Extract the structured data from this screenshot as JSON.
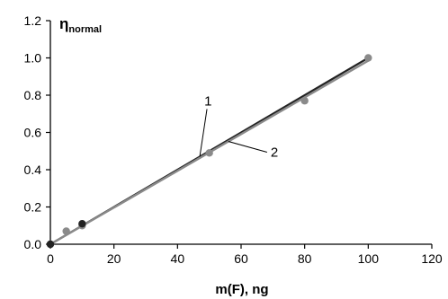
{
  "chart_data": {
    "type": "scatter",
    "title": "",
    "xlabel": "m(F), ng",
    "ylabel_main": "η",
    "ylabel_sub": "normal",
    "xlim": [
      0,
      120
    ],
    "ylim": [
      0,
      1.2
    ],
    "x_ticks": [
      0,
      20,
      40,
      60,
      80,
      100,
      120
    ],
    "y_ticks": [
      0.0,
      0.2,
      0.4,
      0.6,
      0.8,
      1.0,
      1.2
    ],
    "x_tick_labels": [
      "0",
      "20",
      "40",
      "60",
      "80",
      "100",
      "120"
    ],
    "y_tick_labels": [
      "0.0",
      "0.2",
      "0.4",
      "0.6",
      "0.8",
      "1.0",
      "1.2"
    ],
    "grid": false,
    "series": [
      {
        "name": "1",
        "marker": "circle",
        "color": "#222222",
        "points": [
          [
            0,
            0.0
          ],
          [
            10,
            0.11
          ]
        ],
        "fit_line": [
          [
            0,
            0.0
          ],
          [
            100,
            1.0
          ]
        ]
      },
      {
        "name": "2",
        "marker": "circle",
        "color": "#8a8a8a",
        "points": [
          [
            0,
            0.0
          ],
          [
            5,
            0.07
          ],
          [
            10,
            0.1
          ],
          [
            50,
            0.49
          ],
          [
            80,
            0.77
          ],
          [
            100,
            1.0
          ]
        ],
        "fit_line": [
          [
            0,
            0.0
          ],
          [
            100,
            0.985
          ]
        ]
      }
    ],
    "annotations": [
      {
        "text": "1",
        "series": "1",
        "at_x": 47
      },
      {
        "text": "2",
        "series": "2",
        "at_x": 56
      }
    ]
  }
}
